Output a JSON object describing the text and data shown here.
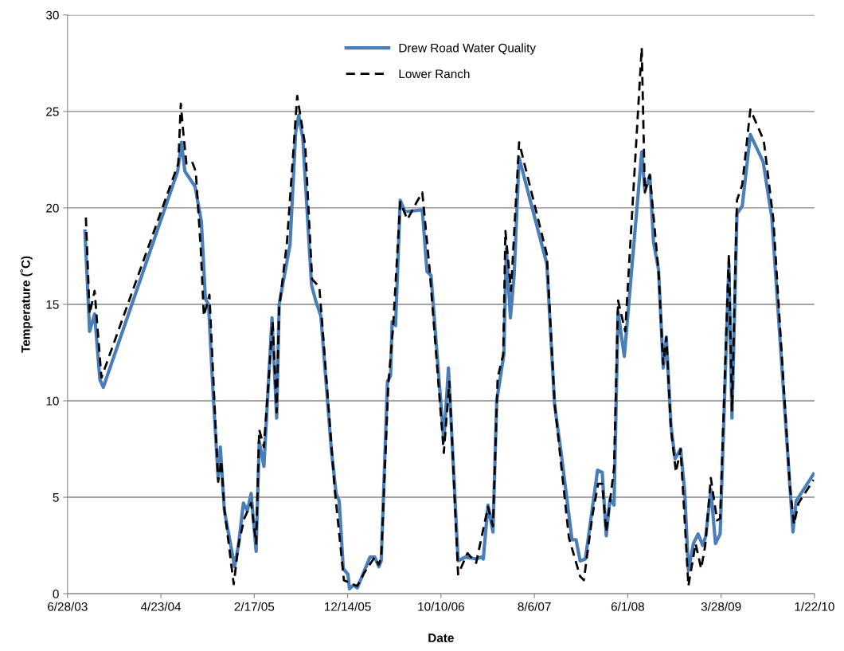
{
  "chart_data": {
    "type": "line",
    "xlabel": "Date",
    "ylabel": "Temperature (˚C)",
    "xlim": [
      "2003-06-28",
      "2010-01-22"
    ],
    "xticks": [
      {
        "value": "2003-06-28",
        "label": "6/28/03"
      },
      {
        "value": "2004-04-23",
        "label": "4/23/04"
      },
      {
        "value": "2005-02-17",
        "label": "2/17/05"
      },
      {
        "value": "2005-12-14",
        "label": "12/14/05"
      },
      {
        "value": "2006-10-10",
        "label": "10/10/06"
      },
      {
        "value": "2007-08-06",
        "label": "8/6/07"
      },
      {
        "value": "2008-06-01",
        "label": "6/1/08"
      },
      {
        "value": "2009-03-28",
        "label": "3/28/09"
      },
      {
        "value": "2010-01-22",
        "label": "1/22/10"
      }
    ],
    "ylim": [
      0,
      30
    ],
    "yticks": [
      0,
      5,
      10,
      15,
      20,
      25,
      30
    ],
    "grid": "y",
    "legend": "top",
    "series": [
      {
        "name": "Drew Road Water Quality",
        "color": "#4a7ebb",
        "line_style": "solid",
        "x": [
          "2003-08-23",
          "2003-09-07",
          "2003-09-23",
          "2003-10-10",
          "2003-10-21",
          "2004-06-16",
          "2004-06-28",
          "2004-07-09",
          "2004-08-11",
          "2004-08-31",
          "2004-09-13",
          "2004-09-23",
          "2004-10-08",
          "2004-10-24",
          "2004-10-31",
          "2004-11-13",
          "2004-12-16",
          "2004-12-29",
          "2005-01-13",
          "2005-01-26",
          "2005-02-07",
          "2005-02-23",
          "2005-03-05",
          "2005-03-20",
          "2005-04-15",
          "2005-04-30",
          "2005-05-08",
          "2005-06-12",
          "2005-06-30",
          "2005-07-10",
          "2005-07-23",
          "2005-08-20",
          "2005-09-04",
          "2005-09-19",
          "2005-10-23",
          "2005-11-07",
          "2005-11-17",
          "2005-11-30",
          "2005-12-15",
          "2005-12-20",
          "2006-01-02",
          "2006-01-14",
          "2006-02-24",
          "2006-03-11",
          "2006-03-24",
          "2006-04-01",
          "2006-04-21",
          "2006-05-01",
          "2006-05-06",
          "2006-05-17",
          "2006-06-01",
          "2006-06-16",
          "2006-08-11",
          "2006-08-26",
          "2006-09-08",
          "2006-10-19",
          "2006-11-03",
          "2006-12-04",
          "2006-12-27",
          "2007-01-31",
          "2007-02-15",
          "2007-02-23",
          "2007-03-10",
          "2007-03-26",
          "2007-04-07",
          "2007-04-30",
          "2007-05-08",
          "2007-05-21",
          "2007-06-02",
          "2007-06-18",
          "2007-09-15",
          "2007-10-10",
          "2007-10-31",
          "2007-12-05",
          "2007-12-18",
          "2007-12-31",
          "2008-01-17",
          "2008-02-09",
          "2008-02-25",
          "2008-03-11",
          "2008-03-24",
          "2008-04-05",
          "2008-04-18",
          "2008-05-01",
          "2008-05-21",
          "2008-07-16",
          "2008-07-26",
          "2008-08-11",
          "2008-08-23",
          "2008-09-08",
          "2008-09-23",
          "2008-10-03",
          "2008-10-18",
          "2008-10-31",
          "2008-11-18",
          "2008-12-01",
          "2008-12-13",
          "2008-12-29",
          "2009-01-13",
          "2009-01-28",
          "2009-02-07",
          "2009-02-23",
          "2009-03-10",
          "2009-03-25",
          "2009-04-22",
          "2009-05-02",
          "2009-05-18",
          "2009-06-04",
          "2009-06-30",
          "2009-08-10",
          "2009-09-07",
          "2009-11-04",
          "2009-11-14",
          "2009-11-24",
          "2010-01-19"
        ],
        "values": [
          18.8,
          13.6,
          14.5,
          11.1,
          10.7,
          21.9,
          23.4,
          21.9,
          21.1,
          19.3,
          15.3,
          15.0,
          10.3,
          6.0,
          7.6,
          4.3,
          1.4,
          2.6,
          4.7,
          4.3,
          5.2,
          2.2,
          7.9,
          6.6,
          14.3,
          9.1,
          15.0,
          18.1,
          23.9,
          24.8,
          23.6,
          16.0,
          15.1,
          14.4,
          7.4,
          5.2,
          4.8,
          1.3,
          1.0,
          0.25,
          0.45,
          0.3,
          1.9,
          1.9,
          1.4,
          1.7,
          11.0,
          11.3,
          14.1,
          13.9,
          20.4,
          19.8,
          19.9,
          16.7,
          16.5,
          7.9,
          11.7,
          1.7,
          1.9,
          1.8,
          1.9,
          1.8,
          4.6,
          3.2,
          10.0,
          12.4,
          17.9,
          14.3,
          16.5,
          22.6,
          17.1,
          9.8,
          7.3,
          2.8,
          2.8,
          1.7,
          1.8,
          4.5,
          6.4,
          6.3,
          3.0,
          4.9,
          4.6,
          14.6,
          12.3,
          22.9,
          20.9,
          21.7,
          18.2,
          16.8,
          11.7,
          13.3,
          8.7,
          7.0,
          7.5,
          5.3,
          1.2,
          2.6,
          3.1,
          2.5,
          3.0,
          5.4,
          2.6,
          3.1,
          17.1,
          9.1,
          19.7,
          20.1,
          23.8,
          22.4,
          19.5,
          5.6,
          3.2,
          4.8,
          6.2
        ]
      },
      {
        "name": "Lower Ranch",
        "color": "#000000",
        "line_style": "dashed",
        "x": [
          "2003-08-26",
          "2003-09-07",
          "2003-09-23",
          "2003-10-15",
          "2004-06-18",
          "2004-06-26",
          "2004-07-04",
          "2004-07-14",
          "2004-08-01",
          "2004-08-13",
          "2004-08-29",
          "2004-09-08",
          "2004-09-26",
          "2004-10-24",
          "2004-11-03",
          "2004-11-13",
          "2004-12-13",
          "2004-12-29",
          "2005-01-16",
          "2005-02-07",
          "2005-02-23",
          "2005-03-05",
          "2005-03-20",
          "2005-04-17",
          "2005-04-30",
          "2005-05-08",
          "2005-06-02",
          "2005-07-05",
          "2005-07-31",
          "2005-08-22",
          "2005-09-14",
          "2005-09-22",
          "2005-10-23",
          "2005-11-02",
          "2005-12-02",
          "2005-12-28",
          "2006-01-14",
          "2006-02-06",
          "2006-03-11",
          "2006-03-24",
          "2006-04-01",
          "2006-04-24",
          "2006-05-09",
          "2006-06-01",
          "2006-06-24",
          "2006-07-24",
          "2006-08-11",
          "2006-09-03",
          "2006-10-19",
          "2006-11-06",
          "2006-12-04",
          "2007-01-03",
          "2007-01-31",
          "2007-03-10",
          "2007-03-26",
          "2007-04-10",
          "2007-04-28",
          "2007-05-05",
          "2007-05-23",
          "2007-06-18",
          "2007-09-15",
          "2007-10-10",
          "2007-11-25",
          "2007-12-31",
          "2008-01-12",
          "2008-02-09",
          "2008-02-27",
          "2008-03-11",
          "2008-03-24",
          "2008-04-18",
          "2008-05-01",
          "2008-05-24",
          "2008-07-16",
          "2008-07-26",
          "2008-08-11",
          "2008-09-08",
          "2008-09-23",
          "2008-10-03",
          "2008-10-18",
          "2008-11-03",
          "2008-11-18",
          "2008-12-13",
          "2009-01-05",
          "2009-01-23",
          "2009-02-05",
          "2009-02-23",
          "2009-03-15",
          "2009-03-25",
          "2009-04-22",
          "2009-05-02",
          "2009-05-18",
          "2009-06-04",
          "2009-06-30",
          "2009-08-12",
          "2009-09-12",
          "2009-11-04",
          "2009-11-17",
          "2009-12-02",
          "2010-01-19"
        ],
        "values": [
          19.5,
          14.5,
          15.7,
          11.2,
          22.3,
          25.4,
          23.9,
          22.3,
          22.4,
          21.9,
          17.9,
          14.4,
          15.5,
          5.8,
          6.9,
          4.4,
          0.5,
          2.6,
          3.9,
          4.7,
          2.6,
          8.5,
          7.6,
          14.1,
          9.4,
          14.8,
          18.2,
          25.8,
          23.2,
          16.3,
          15.9,
          14.3,
          7.7,
          5.5,
          0.7,
          0.5,
          0.4,
          1.1,
          1.9,
          1.5,
          1.9,
          10.9,
          13.8,
          20.3,
          19.4,
          20.3,
          20.8,
          16.9,
          7.3,
          11.0,
          1.0,
          2.1,
          1.6,
          4.5,
          3.5,
          11.2,
          12.4,
          18.8,
          15.7,
          23.4,
          17.6,
          9.9,
          2.9,
          0.9,
          0.7,
          4.1,
          5.7,
          5.7,
          3.2,
          6.5,
          15.2,
          13.6,
          28.3,
          20.8,
          21.7,
          16.7,
          11.9,
          13.3,
          8.5,
          6.3,
          7.5,
          0.4,
          2.6,
          1.3,
          2.5,
          6.0,
          3.8,
          3.9,
          17.6,
          9.5,
          20.4,
          21.2,
          25.1,
          23.5,
          19.4,
          5.6,
          3.6,
          4.7,
          5.9
        ]
      }
    ]
  }
}
